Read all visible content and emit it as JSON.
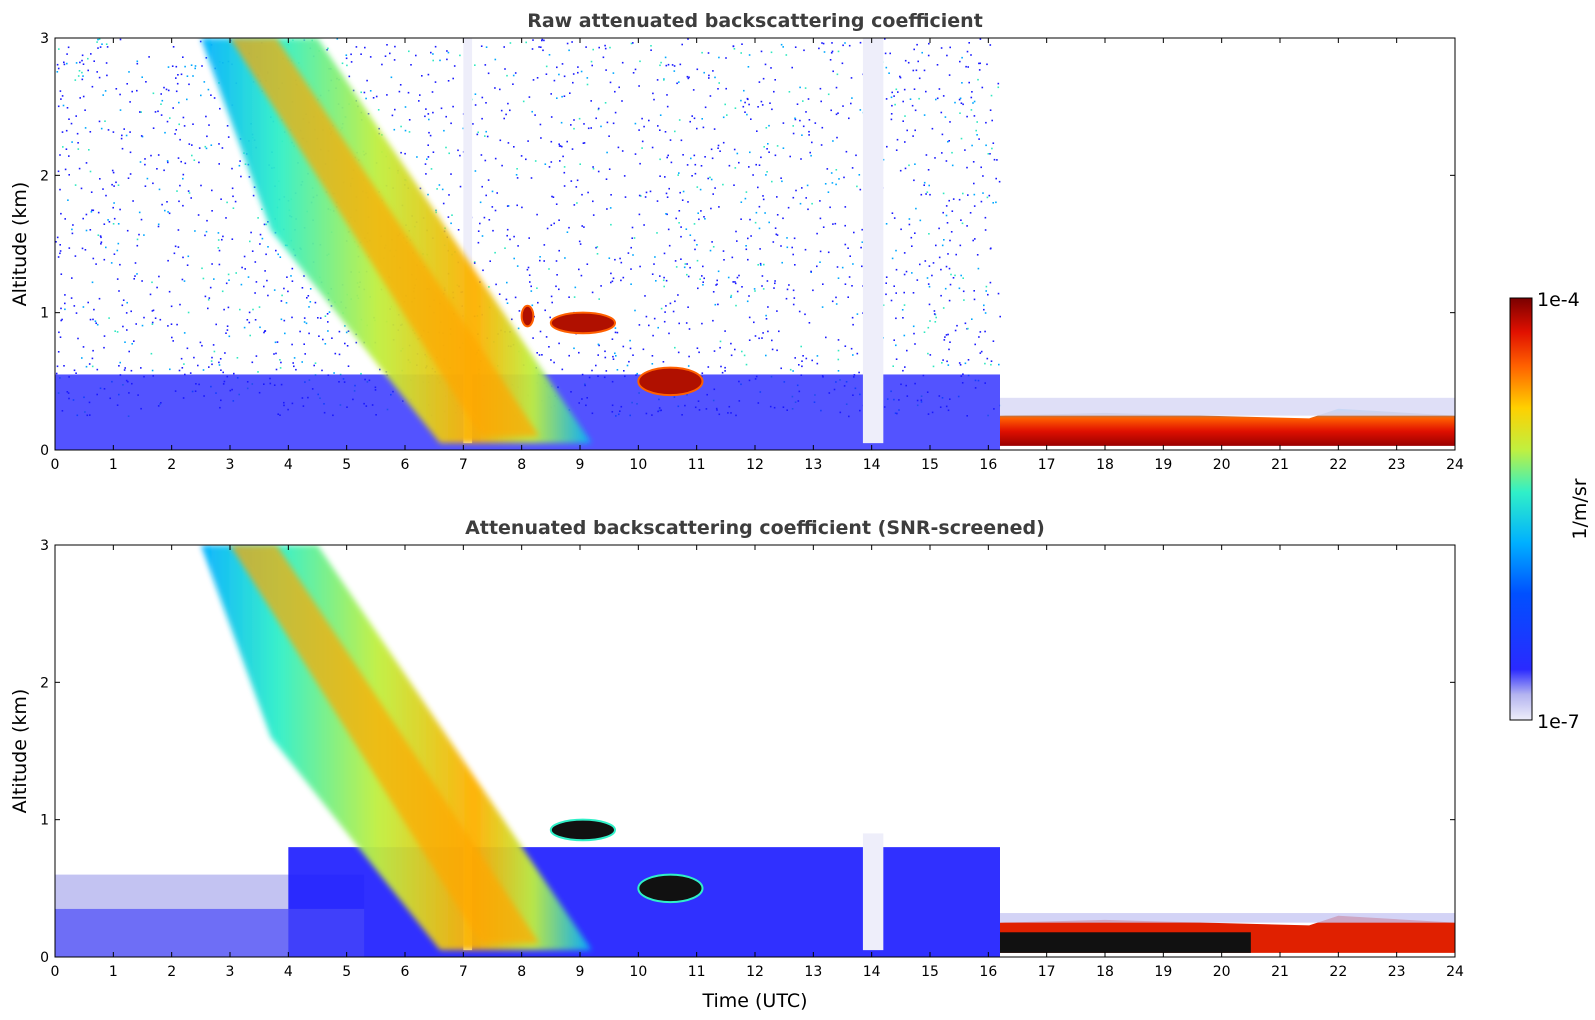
{
  "chart_data": [
    {
      "type": "heatmap",
      "title": "Raw attenuated backscattering coefficient",
      "xlabel": "",
      "ylabel": "Altitude (km)",
      "xlim": [
        0,
        24
      ],
      "ylim": [
        0,
        3
      ],
      "xticks": [
        "0",
        "1",
        "2",
        "3",
        "4",
        "5",
        "6",
        "7",
        "8",
        "9",
        "10",
        "11",
        "12",
        "13",
        "14",
        "15",
        "16",
        "17",
        "18",
        "19",
        "20",
        "21",
        "22",
        "23",
        "24"
      ],
      "yticks": [
        "0",
        "1",
        "2",
        "3"
      ],
      "features": [
        {
          "kind": "descending-layer",
          "t_start": 2.5,
          "t_end": 9.2,
          "z_top_start": 3.0,
          "z_top_end": 0.05,
          "level": "medium-high"
        },
        {
          "kind": "cloud",
          "t": [
            8.0,
            8.2
          ],
          "z": [
            0.9,
            1.05
          ],
          "level": "high"
        },
        {
          "kind": "cloud",
          "t": [
            8.5,
            9.6
          ],
          "z": [
            0.85,
            1.0
          ],
          "level": "high"
        },
        {
          "kind": "cloud",
          "t": [
            10.0,
            11.1
          ],
          "z": [
            0.4,
            0.6
          ],
          "level": "high"
        },
        {
          "kind": "boundary-layer",
          "t": [
            16.2,
            24
          ],
          "z": [
            0.0,
            0.25
          ],
          "level": "high"
        },
        {
          "kind": "noise",
          "t": [
            0,
            16.2
          ],
          "z": [
            0.5,
            3.0
          ],
          "level": "low"
        }
      ]
    },
    {
      "type": "heatmap",
      "title": "Attenuated backscattering coefficient (SNR-screened)",
      "xlabel": "Time (UTC)",
      "ylabel": "Altitude (km)",
      "xlim": [
        0,
        24
      ],
      "ylim": [
        0,
        3
      ],
      "xticks": [
        "0",
        "1",
        "2",
        "3",
        "4",
        "5",
        "6",
        "7",
        "8",
        "9",
        "10",
        "11",
        "12",
        "13",
        "14",
        "15",
        "16",
        "17",
        "18",
        "19",
        "20",
        "21",
        "22",
        "23",
        "24"
      ],
      "yticks": [
        "0",
        "1",
        "2",
        "3"
      ],
      "features": [
        {
          "kind": "descending-layer",
          "t_start": 2.5,
          "t_end": 9.2,
          "z_top_start": 3.0,
          "z_top_end": 0.05,
          "level": "medium-high"
        },
        {
          "kind": "cloud",
          "t": [
            8.5,
            9.6
          ],
          "z": [
            0.85,
            1.0
          ],
          "level": "saturated-black"
        },
        {
          "kind": "cloud",
          "t": [
            10.0,
            11.1
          ],
          "z": [
            0.4,
            0.6
          ],
          "level": "saturated-black"
        },
        {
          "kind": "low-layer",
          "t": [
            0,
            16.2
          ],
          "z": [
            0.0,
            0.8
          ],
          "level": "low"
        },
        {
          "kind": "boundary-layer",
          "t": [
            16.2,
            24
          ],
          "z": [
            0.0,
            0.25
          ],
          "level": "high"
        }
      ]
    }
  ],
  "colorbar": {
    "label": "1/m/sr",
    "max_label": "1e-4",
    "min_label": "1e-7",
    "colors": [
      "#eeeefa",
      "#b4b4f0",
      "#2a2aff",
      "#0050ff",
      "#00b0ff",
      "#30f0c8",
      "#c0f040",
      "#ffd000",
      "#ff6000",
      "#e01000",
      "#7a0000"
    ]
  }
}
